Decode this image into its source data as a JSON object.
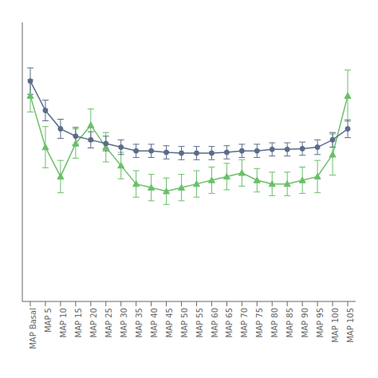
{
  "chart_data": {
    "type": "line",
    "categories": [
      "MAP Basal",
      "MAP 5",
      "MAP 10",
      "MAP 15",
      "MAP 20",
      "MAP 25",
      "MAP 30",
      "MAP 35",
      "MAP 40",
      "MAP 45",
      "MAP 50",
      "MAP 55",
      "MAP 60",
      "MAP 65",
      "MAP 70",
      "MAP 75",
      "MAP 80",
      "MAP 85",
      "MAP 90",
      "MAP 95",
      "MAP 100",
      "MAP 105"
    ],
    "series": [
      {
        "color": "#5b6b8a",
        "marker": "circle",
        "values": [
          3.5,
          3.1,
          2.85,
          2.75,
          2.7,
          2.65,
          2.6,
          2.55,
          2.55,
          2.53,
          2.52,
          2.52,
          2.52,
          2.53,
          2.55,
          2.55,
          2.57,
          2.57,
          2.58,
          2.6,
          2.7,
          2.85
        ],
        "errors": [
          0.18,
          0.14,
          0.13,
          0.12,
          0.11,
          0.1,
          0.1,
          0.09,
          0.09,
          0.09,
          0.09,
          0.09,
          0.09,
          0.09,
          0.09,
          0.09,
          0.09,
          0.09,
          0.09,
          0.1,
          0.1,
          0.12
        ]
      },
      {
        "color": "#6abf69",
        "marker": "triangle",
        "values": [
          3.3,
          2.6,
          2.2,
          2.65,
          2.9,
          2.6,
          2.35,
          2.1,
          2.05,
          2.0,
          2.05,
          2.1,
          2.15,
          2.2,
          2.25,
          2.15,
          2.1,
          2.1,
          2.15,
          2.2,
          2.5,
          3.3
        ],
        "errors": [
          0.22,
          0.28,
          0.22,
          0.2,
          0.22,
          0.2,
          0.18,
          0.18,
          0.18,
          0.18,
          0.18,
          0.18,
          0.18,
          0.18,
          0.18,
          0.16,
          0.16,
          0.16,
          0.18,
          0.22,
          0.28,
          0.35
        ]
      }
    ],
    "ylim": [
      0.5,
      4.3
    ],
    "yticks": [],
    "tick_labels": "x",
    "grid": false
  }
}
